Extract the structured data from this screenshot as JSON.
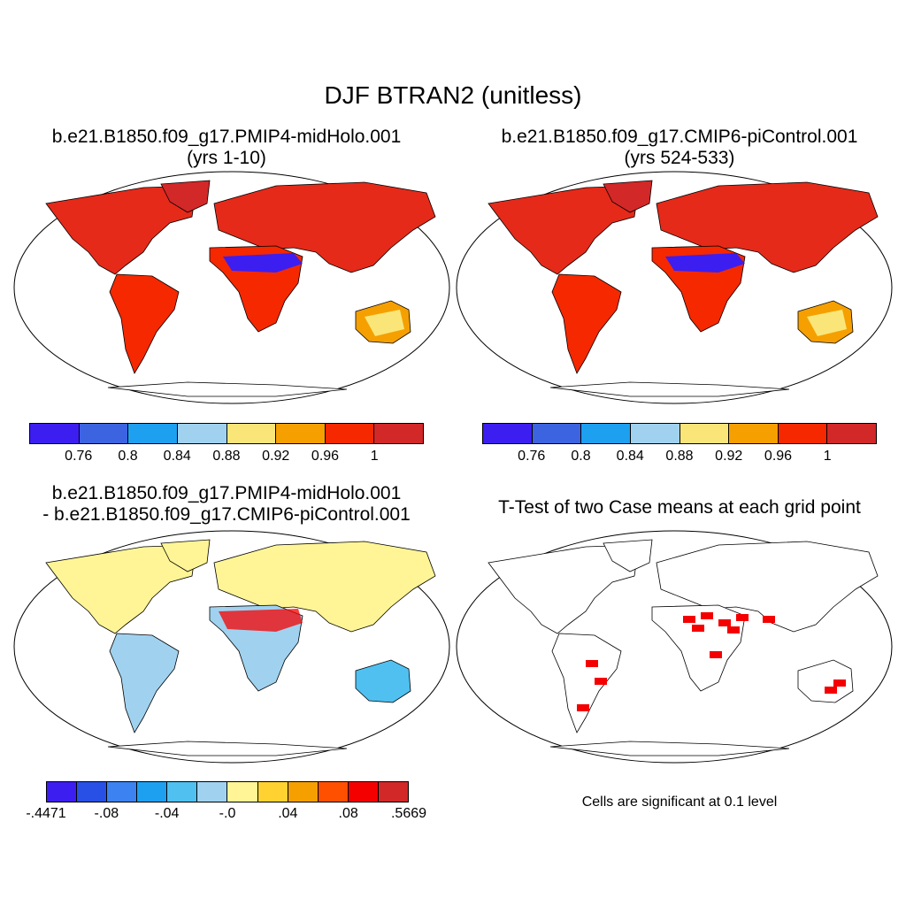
{
  "main_title": "DJF BTRAN2 (unitless)",
  "panels": [
    {
      "title_line1": "b.e21.B1850.f09_g17.PMIP4-midHolo.001",
      "title_line2": "(yrs 1-10)"
    },
    {
      "title_line1": "b.e21.B1850.f09_g17.CMIP6-piControl.001",
      "title_line2": "(yrs 524-533)"
    },
    {
      "title_line1": "b.e21.B1850.f09_g17.PMIP4-midHolo.001",
      "title_line2": "- b.e21.B1850.f09_g17.CMIP6-piControl.001"
    },
    {
      "title_line1": "T-Test of two Case means at each grid point",
      "title_line2": ""
    }
  ],
  "colorbar_abs": {
    "colors": [
      "#3c1ef0",
      "#3c64e0",
      "#1ea0f0",
      "#a0d2f0",
      "#fae678",
      "#f5a000",
      "#f52800",
      "#d22828"
    ],
    "labels": [
      "0.76",
      "0.8",
      "0.84",
      "0.88",
      "0.92",
      "0.96",
      "1"
    ]
  },
  "colorbar_diff": {
    "colors": [
      "#3c1ef0",
      "#2850e6",
      "#3c82f0",
      "#1ea0f0",
      "#50c0f0",
      "#a0d2f0",
      "#fff596",
      "#ffd232",
      "#f5a000",
      "#ff5000",
      "#f50000",
      "#d22828"
    ],
    "labels": [
      "-.4471",
      "-.08",
      "-.04",
      "-.0",
      ".04",
      ".08",
      ".5669"
    ]
  },
  "significance_note": "Cells are significant at 0.1 level",
  "icons": {
    "land": "continent-outline",
    "ocean": "robinson-map-frame"
  }
}
